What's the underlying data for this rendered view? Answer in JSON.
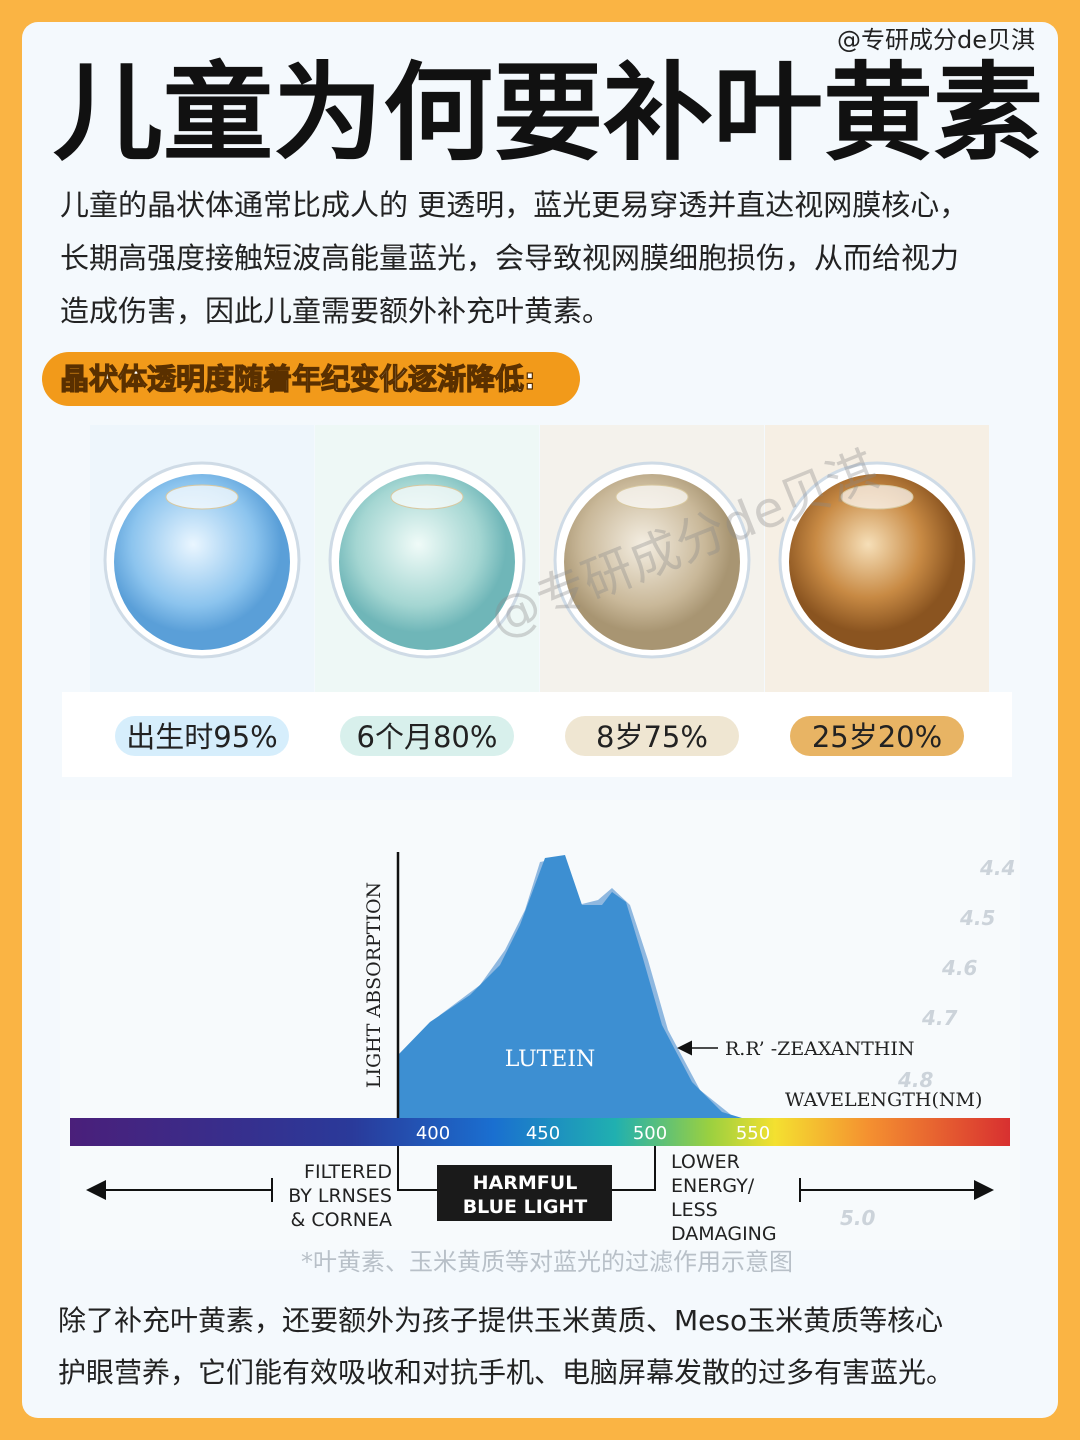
{
  "handle": "@专研成分de贝淇",
  "title": "儿童为何要补叶黄素",
  "intro": [
    "儿童的晶状体通常比成人的 更透明，蓝光更易穿透并直达视网膜核心，",
    "长期高强度接触短波高能量蓝光，会导致视网膜细胞损伤，从而给视力",
    "造成伤害，因此儿童需要额外补充叶黄素。"
  ],
  "banner": "晶状体透明度随着年纪变化逐渐降低:",
  "eyes": [
    "出生时95%",
    "6个月80%",
    "8岁75%",
    "25岁20%"
  ],
  "diagram": {
    "y_label": "LIGHT ABSORPTION",
    "lutein": "LUTEIN",
    "zeaxanthin": "R.R’ -ZEAXANTHIN",
    "x_label": "WAVELENGTH(NM)",
    "ticks": [
      "400",
      "450",
      "500",
      "550"
    ],
    "filtered": [
      "FILTERED",
      "BY LRNSES",
      "& CORNEA"
    ],
    "harmful": [
      "HARMFUL",
      "BLUE LIGHT"
    ],
    "lower": [
      "LOWER",
      "ENERGY/",
      "LESS",
      "DAMAGING"
    ],
    "eye_chart": [
      "4.4",
      "4.5",
      "4.6",
      "4.7",
      "4.8",
      "5.0"
    ]
  },
  "caption": "*叶黄素、玉米黄质等对蓝光的过滤作用示意图",
  "outro": [
    "除了补充叶黄素，还要额外为孩子提供玉米黄质、Meso玉米黄质等核心",
    "护眼营养，它们能有效吸收和对抗手机、电脑屏幕发散的过多有害蓝光。"
  ]
}
